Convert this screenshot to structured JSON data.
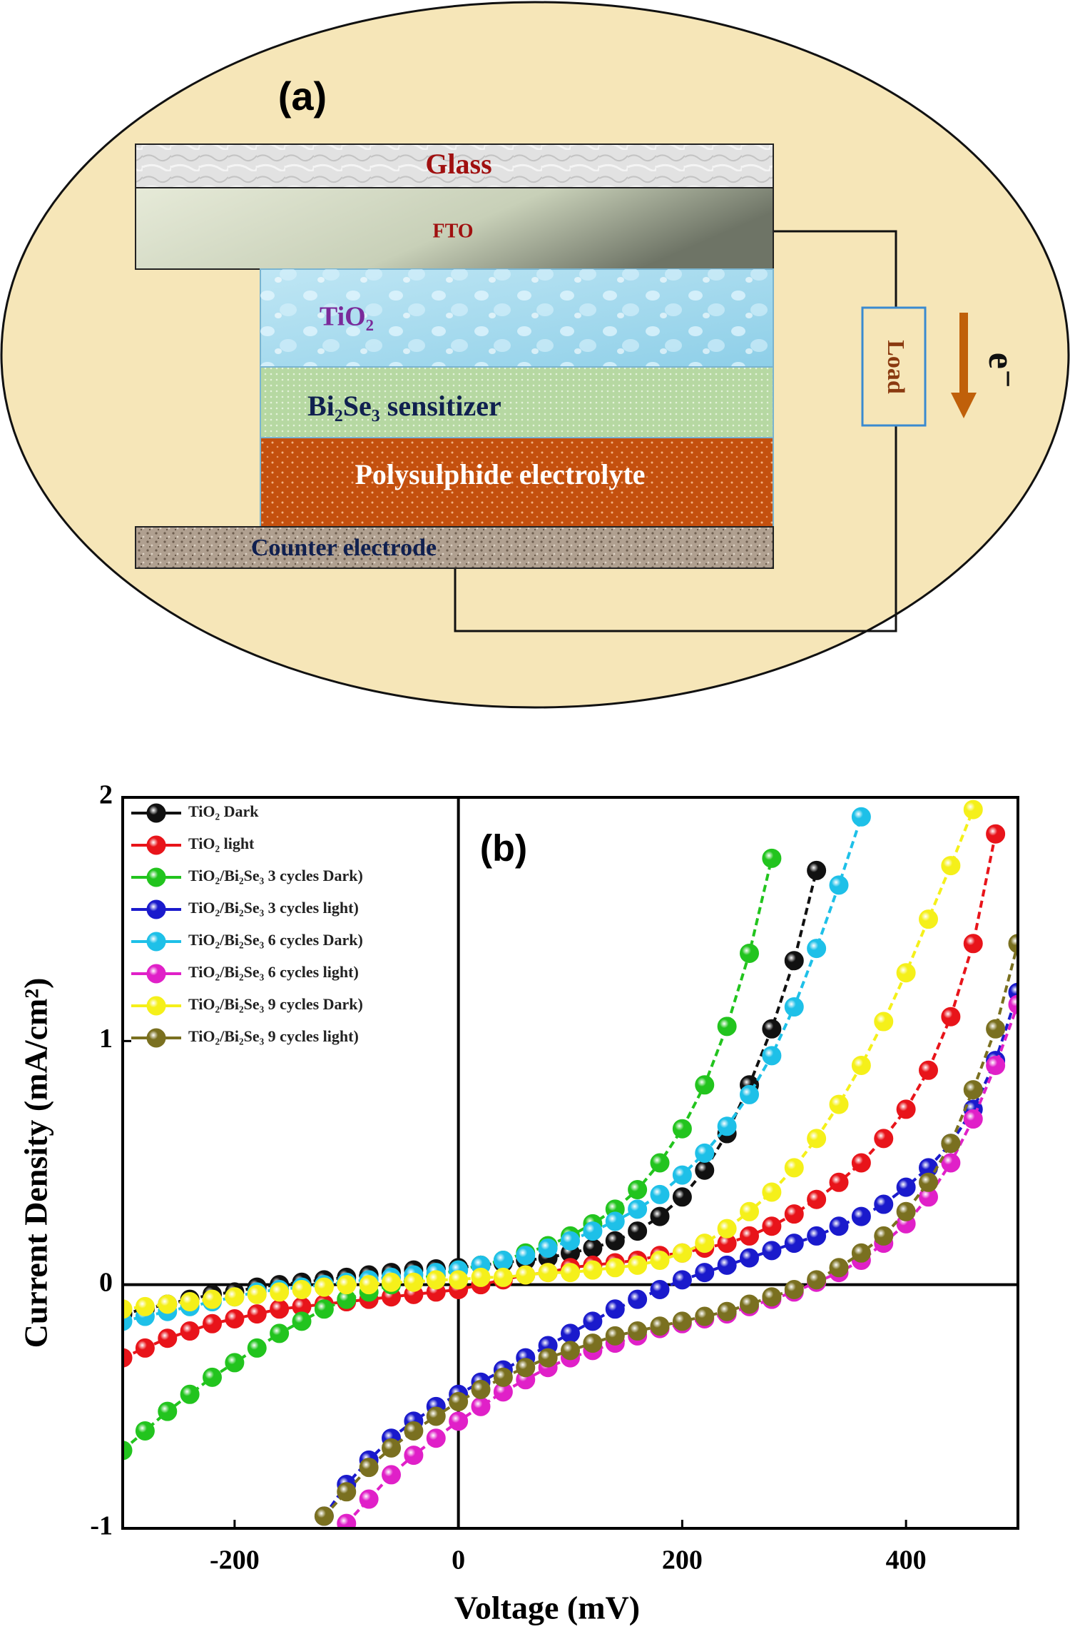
{
  "diagram": {
    "label": "(a)",
    "glass": "Glass",
    "fto": "FTO",
    "tio2": "TiO₂",
    "sensitizer": "Bi₂Se₃ sensitizer",
    "electrolyte": "Polysulphide electrolyte",
    "counter": "Counter electrode",
    "load": "Load",
    "electron": "e⁻"
  },
  "chart_data": {
    "type": "line",
    "label": "(b)",
    "x_label": "Voltage (mV)",
    "y_label": "Current Density (mA/cm²)",
    "xlim": [
      -300,
      500
    ],
    "ylim": [
      -1,
      2
    ],
    "xticks": [
      -200,
      0,
      200,
      400
    ],
    "yticks": [
      -1,
      0,
      1,
      2
    ],
    "grid": false,
    "zero_lines": true,
    "legend": "upper left",
    "x": [
      -300,
      -280,
      -260,
      -240,
      -220,
      -200,
      -180,
      -160,
      -140,
      -120,
      -100,
      -80,
      -60,
      -40,
      -20,
      0,
      20,
      40,
      60,
      80,
      100,
      120,
      140,
      160,
      180,
      200,
      220,
      240,
      260,
      280,
      300,
      320,
      340,
      360,
      380,
      400,
      420,
      440,
      460,
      480,
      500
    ],
    "series": [
      {
        "name": "TiO₂ Dark",
        "color": "#111111",
        "values": [
          -0.12,
          -0.1,
          -0.08,
          -0.06,
          -0.04,
          -0.03,
          -0.01,
          0,
          0.01,
          0.02,
          0.03,
          0.04,
          0.05,
          0.06,
          0.065,
          0.07,
          0.08,
          0.09,
          0.1,
          0.11,
          0.13,
          0.15,
          0.18,
          0.22,
          0.28,
          0.36,
          0.47,
          0.62,
          0.82,
          1.05,
          1.33,
          1.7,
          null,
          null,
          null,
          null,
          null,
          null,
          null,
          null,
          null
        ]
      },
      {
        "name": "TiO₂ light",
        "color": "#e8141a",
        "values": [
          -0.3,
          -0.26,
          -0.22,
          -0.19,
          -0.16,
          -0.14,
          -0.12,
          -0.1,
          -0.09,
          -0.08,
          -0.07,
          -0.06,
          -0.05,
          -0.04,
          -0.03,
          -0.02,
          0,
          0.02,
          0.04,
          0.05,
          0.07,
          0.08,
          0.09,
          0.1,
          0.12,
          0.13,
          0.15,
          0.17,
          0.2,
          0.24,
          0.29,
          0.35,
          0.42,
          0.5,
          0.6,
          0.72,
          0.88,
          1.1,
          1.4,
          1.85,
          null
        ]
      },
      {
        "name": "TiO₂/Bi₂Se₃ 3 cycles Dark)",
        "color": "#22c41e",
        "values": [
          -0.68,
          -0.6,
          -0.52,
          -0.45,
          -0.38,
          -0.32,
          -0.26,
          -0.2,
          -0.15,
          -0.1,
          -0.06,
          -0.03,
          0,
          0.02,
          0.04,
          0.06,
          0.08,
          0.1,
          0.13,
          0.16,
          0.2,
          0.25,
          0.31,
          0.39,
          0.5,
          0.64,
          0.82,
          1.06,
          1.36,
          1.75,
          null,
          null,
          null,
          null,
          null,
          null,
          null,
          null,
          null,
          null,
          null
        ]
      },
      {
        "name": "TiO₂/Bi₂Se₃ 3 cycles light)",
        "color": "#1a1acc",
        "values": [
          null,
          null,
          null,
          null,
          null,
          null,
          null,
          null,
          null,
          -0.95,
          -0.82,
          -0.72,
          -0.63,
          -0.56,
          -0.5,
          -0.45,
          -0.4,
          -0.35,
          -0.3,
          -0.25,
          -0.2,
          -0.15,
          -0.1,
          -0.06,
          -0.02,
          0.02,
          0.05,
          0.08,
          0.11,
          0.14,
          0.17,
          0.2,
          0.24,
          0.28,
          0.33,
          0.4,
          0.48,
          0.58,
          0.72,
          0.92,
          1.2
        ]
      },
      {
        "name": "TiO₂/Bi₂Se₃ 6 cycles Dark)",
        "color": "#1ec0e8",
        "values": [
          -0.15,
          -0.13,
          -0.11,
          -0.09,
          -0.07,
          -0.05,
          -0.03,
          -0.02,
          -0.01,
          0,
          0.01,
          0.02,
          0.03,
          0.04,
          0.05,
          0.06,
          0.08,
          0.1,
          0.12,
          0.15,
          0.18,
          0.22,
          0.26,
          0.31,
          0.37,
          0.45,
          0.54,
          0.65,
          0.78,
          0.94,
          1.14,
          1.38,
          1.64,
          1.92,
          null,
          null,
          null,
          null,
          null,
          null,
          null
        ]
      },
      {
        "name": "TiO₂/Bi₂Se₃ 6 cycles light)",
        "color": "#e020c8",
        "values": [
          null,
          null,
          null,
          null,
          null,
          null,
          null,
          null,
          null,
          null,
          -0.98,
          -0.88,
          -0.78,
          -0.7,
          -0.63,
          -0.56,
          -0.5,
          -0.44,
          -0.39,
          -0.34,
          -0.3,
          -0.27,
          -0.24,
          -0.21,
          -0.18,
          -0.16,
          -0.14,
          -0.12,
          -0.09,
          -0.06,
          -0.03,
          0.01,
          0.05,
          0.1,
          0.17,
          0.25,
          0.36,
          0.5,
          0.68,
          0.9,
          1.15
        ]
      },
      {
        "name": "TiO₂/Bi₂Se₃ 9 cycles Dark)",
        "color": "#f5f01a",
        "values": [
          -0.1,
          -0.09,
          -0.08,
          -0.07,
          -0.06,
          -0.05,
          -0.04,
          -0.03,
          -0.02,
          -0.01,
          0,
          0,
          0.01,
          0.01,
          0.02,
          0.02,
          0.03,
          0.03,
          0.04,
          0.05,
          0.05,
          0.06,
          0.07,
          0.08,
          0.1,
          0.13,
          0.17,
          0.23,
          0.3,
          0.38,
          0.48,
          0.6,
          0.74,
          0.9,
          1.08,
          1.28,
          1.5,
          1.72,
          1.95,
          null,
          null
        ]
      },
      {
        "name": "TiO₂/Bi₂Se₃ 9 cycles light)",
        "color": "#7a7020",
        "values": [
          null,
          null,
          null,
          null,
          null,
          null,
          null,
          null,
          null,
          -0.95,
          -0.85,
          -0.75,
          -0.67,
          -0.6,
          -0.54,
          -0.48,
          -0.43,
          -0.38,
          -0.34,
          -0.3,
          -0.27,
          -0.24,
          -0.21,
          -0.19,
          -0.17,
          -0.15,
          -0.13,
          -0.11,
          -0.08,
          -0.05,
          -0.02,
          0.02,
          0.07,
          0.13,
          0.2,
          0.3,
          0.42,
          0.58,
          0.8,
          1.05,
          1.4
        ]
      }
    ]
  }
}
